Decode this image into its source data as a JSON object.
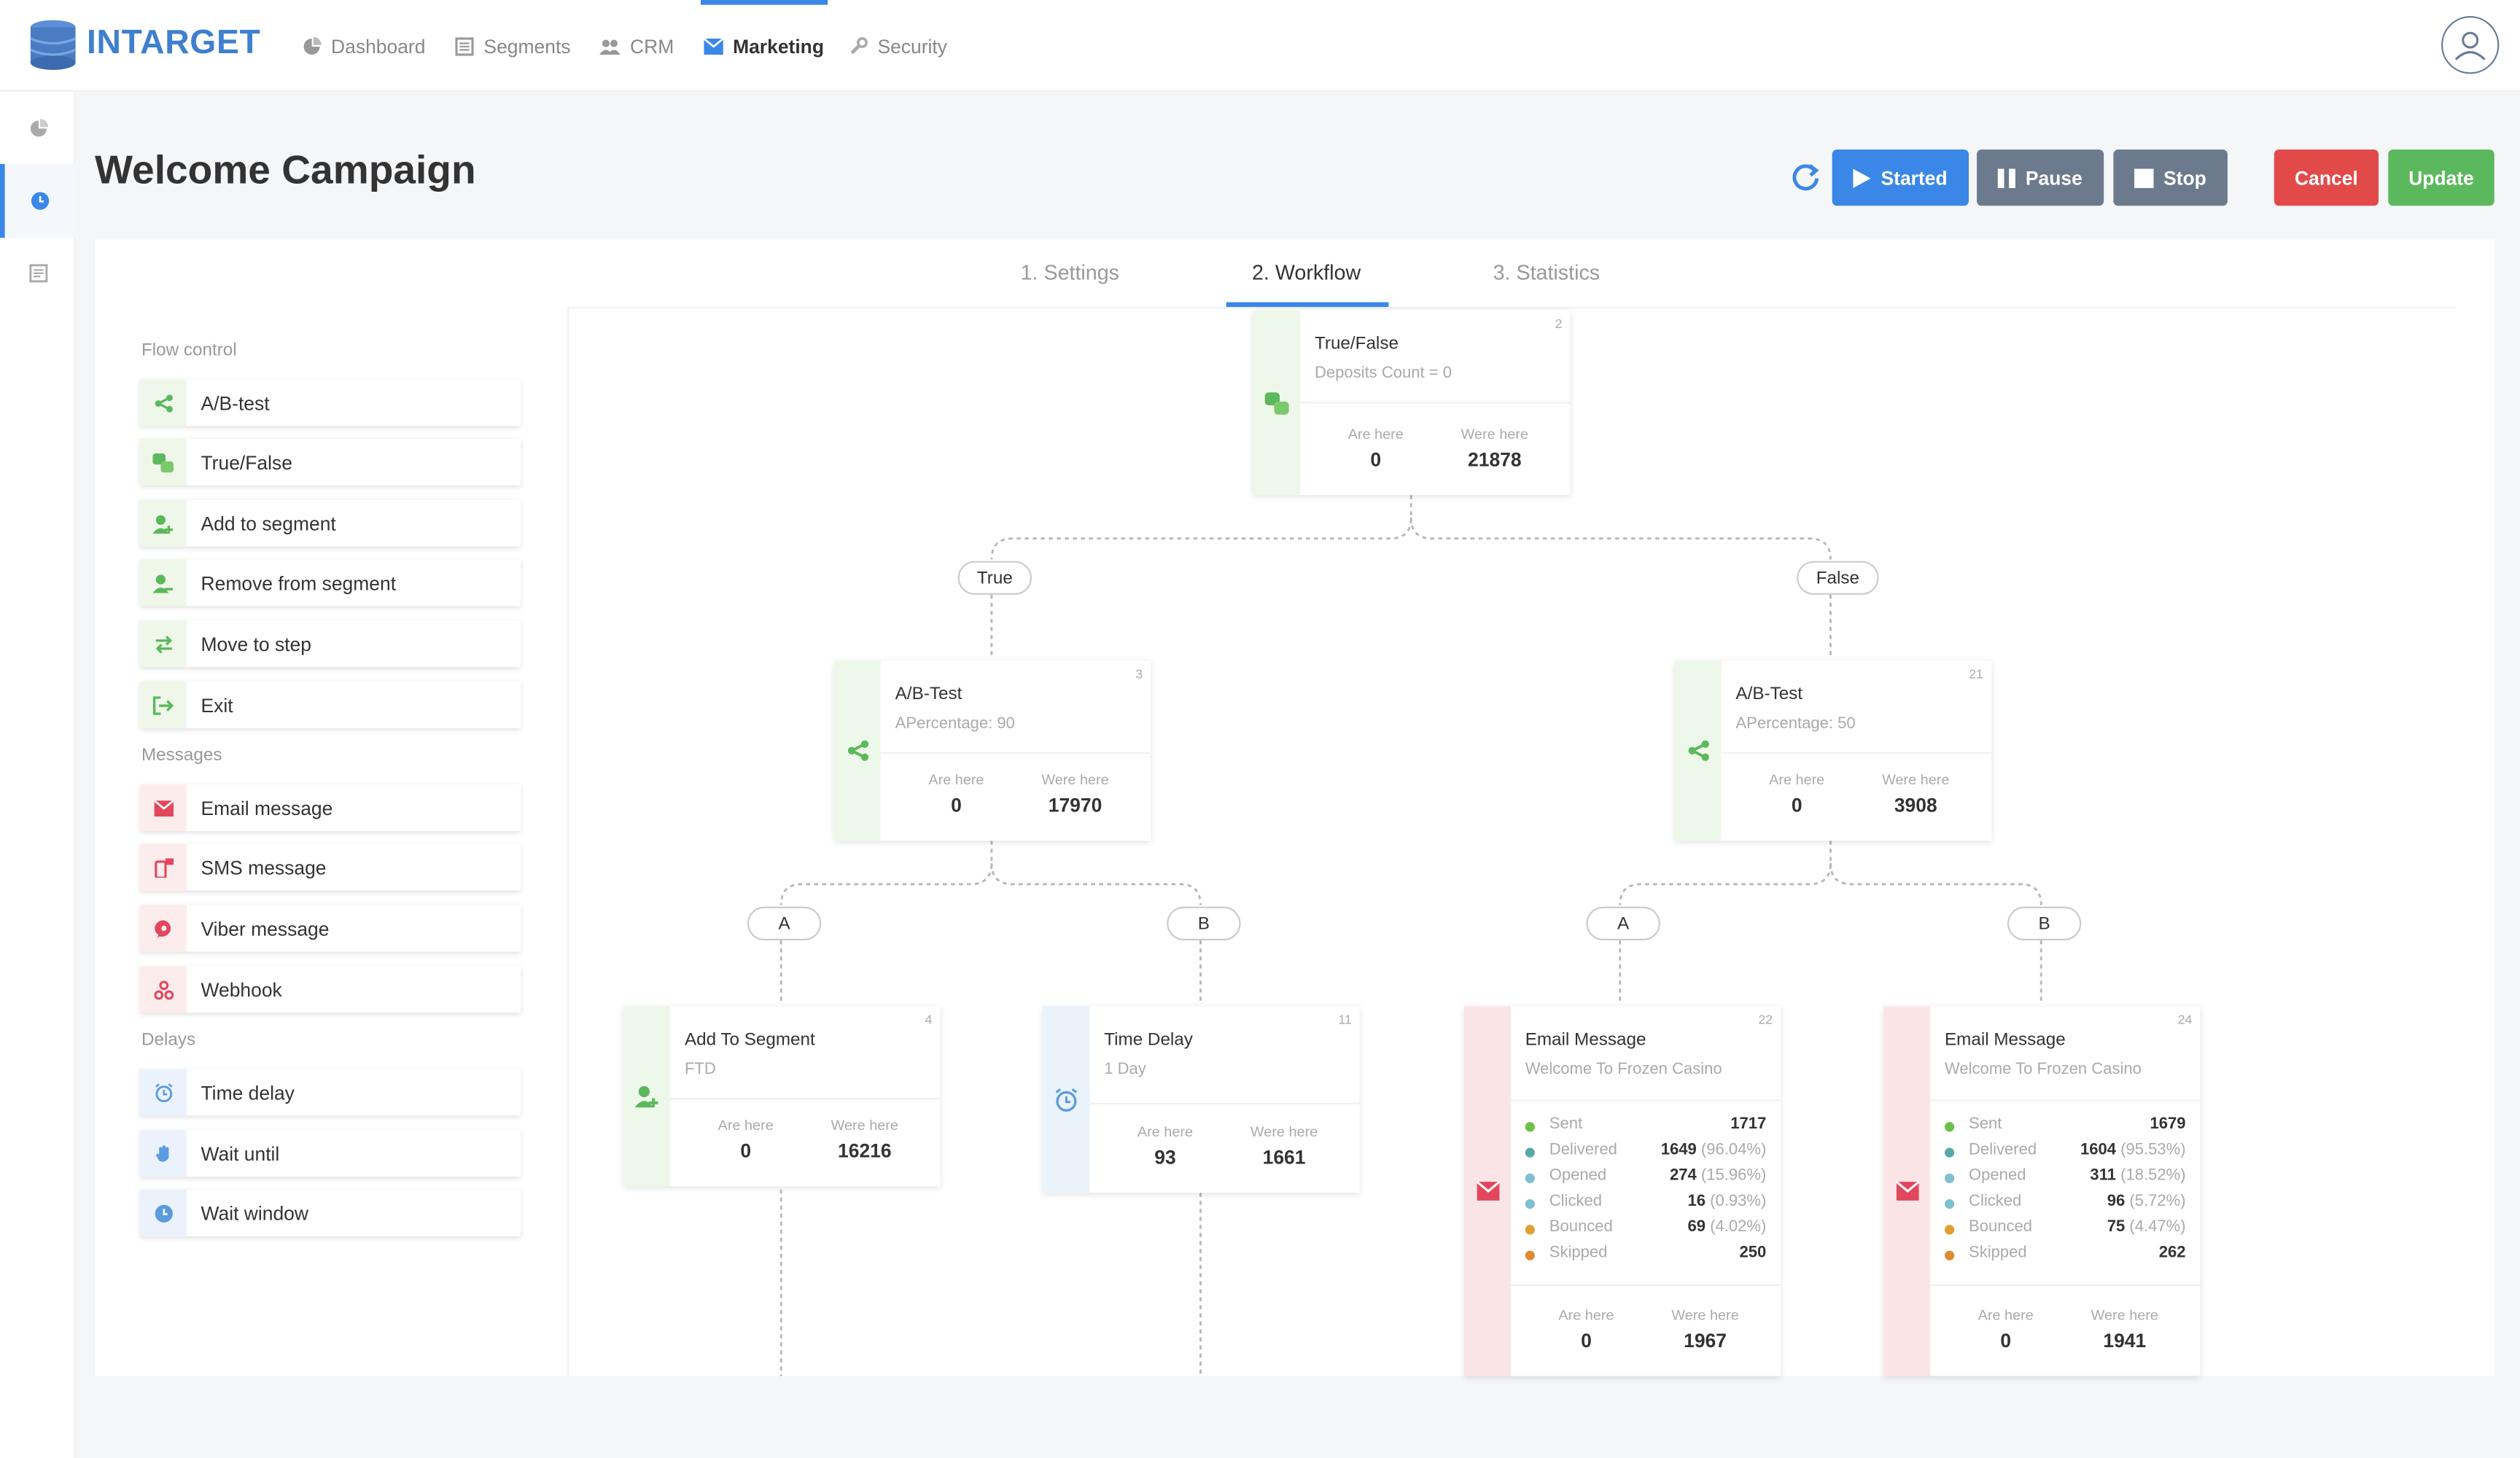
{
  "app": {
    "brand": "INTARGET"
  },
  "nav": {
    "items": [
      {
        "label": "Dashboard",
        "icon": "pie-chart-icon"
      },
      {
        "label": "Segments",
        "icon": "segments-icon"
      },
      {
        "label": "CRM",
        "icon": "users-icon"
      },
      {
        "label": "Marketing",
        "icon": "envelope-icon",
        "active": true
      },
      {
        "label": "Security",
        "icon": "wrench-icon"
      }
    ]
  },
  "page": {
    "title": "Welcome Campaign"
  },
  "toolbar": {
    "refresh_icon": "refresh-icon",
    "started": "Started",
    "pause": "Pause",
    "stop": "Stop",
    "cancel": "Cancel",
    "update": "Update"
  },
  "colors": {
    "accent": "#3a87e8",
    "gray_button": "#6c7a8d",
    "cancel": "#e24a4a",
    "update": "#5cb85c",
    "green": "#5cb85c",
    "red": "#e2475d",
    "blue": "#5b9be0"
  },
  "tabs": [
    {
      "label": "1. Settings"
    },
    {
      "label": "2. Workflow",
      "active": true
    },
    {
      "label": "3. Statistics"
    }
  ],
  "palette": {
    "flow_control": {
      "heading": "Flow control",
      "items": [
        "A/B-test",
        "True/False",
        "Add to segment",
        "Remove from segment",
        "Move to step",
        "Exit"
      ]
    },
    "messages": {
      "heading": "Messages",
      "items": [
        "Email message",
        "SMS message",
        "Viber message",
        "Webhook"
      ]
    },
    "delays": {
      "heading": "Delays",
      "items": [
        "Time delay",
        "Wait until",
        "Wait window"
      ]
    }
  },
  "stats_labels": {
    "are_here": "Are here",
    "were_here": "Were here"
  },
  "nodes": {
    "n2": {
      "id": "2",
      "title": "True/False",
      "subtitle": "Deposits Count = 0",
      "are_here": "0",
      "were_here": "21878"
    },
    "n3": {
      "id": "3",
      "title": "A/B-Test",
      "subtitle": "APercentage: 90",
      "are_here": "0",
      "were_here": "17970"
    },
    "n21": {
      "id": "21",
      "title": "A/B-Test",
      "subtitle": "APercentage: 50",
      "are_here": "0",
      "were_here": "3908"
    },
    "n4": {
      "id": "4",
      "title": "Add To Segment",
      "subtitle": "FTD",
      "are_here": "0",
      "were_here": "16216"
    },
    "n11": {
      "id": "11",
      "title": "Time Delay",
      "subtitle": "1 Day",
      "are_here": "93",
      "were_here": "1661"
    },
    "n22": {
      "id": "22",
      "title": "Email Message",
      "subtitle": "Welcome To Frozen Casino",
      "are_here": "0",
      "were_here": "1967",
      "metrics": [
        {
          "label": "Sent",
          "value": "1717",
          "pct": ""
        },
        {
          "label": "Delivered",
          "value": "1649",
          "pct": "(96.04%)"
        },
        {
          "label": "Opened",
          "value": "274",
          "pct": "(15.96%)"
        },
        {
          "label": "Clicked",
          "value": "16",
          "pct": "(0.93%)"
        },
        {
          "label": "Bounced",
          "value": "69",
          "pct": "(4.02%)"
        },
        {
          "label": "Skipped",
          "value": "250",
          "pct": ""
        }
      ]
    },
    "n24": {
      "id": "24",
      "title": "Email Message",
      "subtitle": "Welcome To Frozen Casino",
      "are_here": "0",
      "were_here": "1941",
      "metrics": [
        {
          "label": "Sent",
          "value": "1679",
          "pct": ""
        },
        {
          "label": "Delivered",
          "value": "1604",
          "pct": "(95.53%)"
        },
        {
          "label": "Opened",
          "value": "311",
          "pct": "(18.52%)"
        },
        {
          "label": "Clicked",
          "value": "96",
          "pct": "(5.72%)"
        },
        {
          "label": "Bounced",
          "value": "75",
          "pct": "(4.47%)"
        },
        {
          "label": "Skipped",
          "value": "262",
          "pct": ""
        }
      ]
    }
  },
  "branches": {
    "true": "True",
    "false": "False",
    "a": "A",
    "b": "B"
  },
  "metric_colors": [
    "#6cc04a",
    "#5aa8a8",
    "#7fbfcf",
    "#7fbfcf",
    "#e0a030",
    "#e08a30"
  ]
}
